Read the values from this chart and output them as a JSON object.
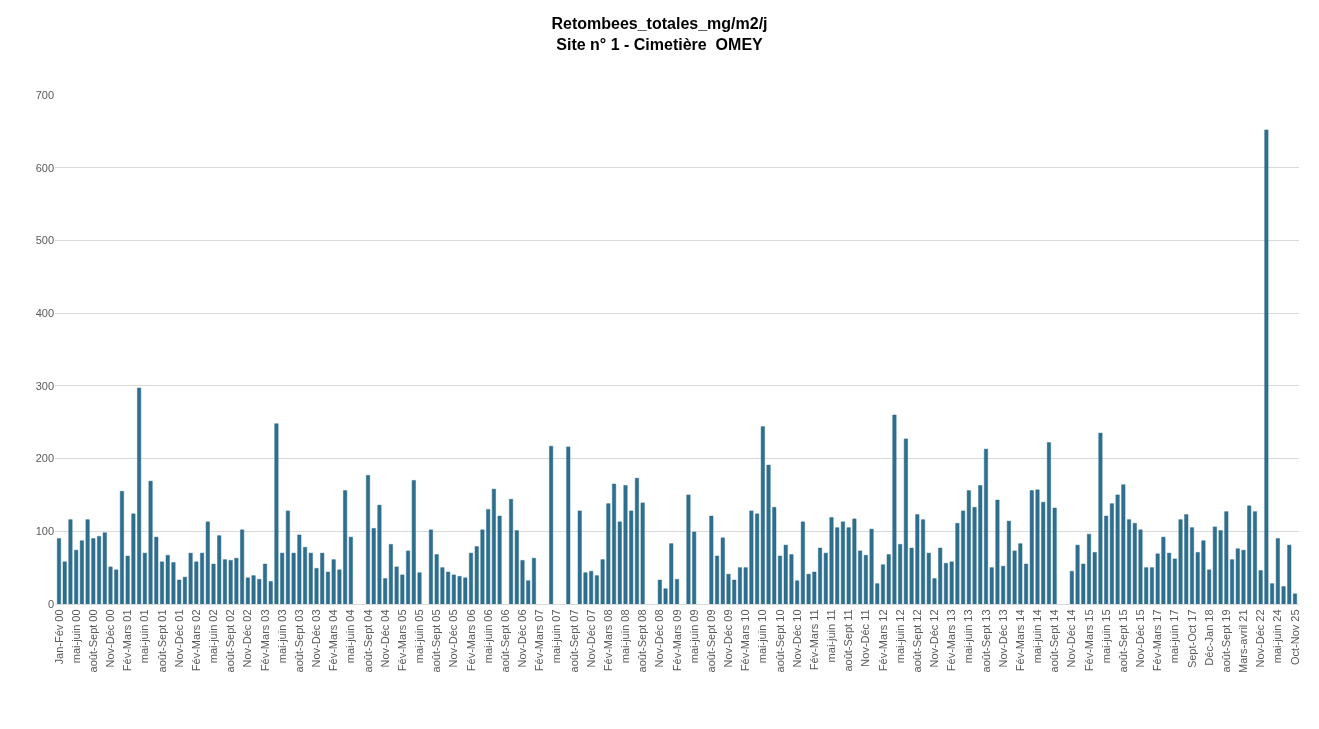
{
  "chart_data": {
    "type": "bar",
    "title": "Retombees_totales_mg/m2/j",
    "subtitle": "Site n° 1 - Cimetière  OMEY",
    "categories": [
      "Jan-Fév 00",
      null,
      null,
      "mai-juin 00",
      null,
      null,
      "août-Sept 00",
      null,
      null,
      "Nov-Déc 00",
      null,
      null,
      "Fév-Mars 01",
      null,
      null,
      "mai-juin 01",
      null,
      null,
      "août-Sept 01",
      null,
      null,
      "Nov-Déc 01",
      null,
      null,
      "Fév-Mars 02",
      null,
      null,
      "mai-juin 02",
      null,
      null,
      "août-Sept 02",
      null,
      null,
      "Nov-Déc 02",
      null,
      null,
      "Fév-Mars 03",
      null,
      null,
      "mai-juin 03",
      null,
      null,
      "août-Sept 03",
      null,
      null,
      "Nov-Déc 03",
      null,
      null,
      "Fév-Mars 04",
      null,
      null,
      "mai-juin 04",
      null,
      null,
      "août-Sept 04",
      null,
      null,
      "Nov-Déc 04",
      null,
      null,
      "Fév-Mars 05",
      null,
      null,
      "mai-juin 05",
      null,
      null,
      "août-Sept 05",
      null,
      null,
      "Nov-Déc 05",
      null,
      null,
      "Fév-Mars 06",
      null,
      null,
      "mai-juin 06",
      null,
      null,
      "août-Sept 06",
      null,
      null,
      "Nov-Déc 06",
      null,
      null,
      "Fév-Mars 07",
      null,
      null,
      "mai-juin 07",
      null,
      null,
      "août-Sept 07",
      null,
      null,
      "Nov-Déc 07",
      null,
      null,
      "Fév-Mars 08",
      null,
      null,
      "mai-juin 08",
      null,
      null,
      "août-Sept 08",
      null,
      null,
      "Nov-Déc 08",
      null,
      null,
      "Fév-Mars 09",
      null,
      null,
      "mai-juin 09",
      null,
      null,
      "août-Sept 09",
      null,
      null,
      "Nov-Déc 09",
      null,
      null,
      "Fév-Mars 10",
      null,
      null,
      "mai-juin 10",
      null,
      null,
      "août-Sept 10",
      null,
      null,
      "Nov-Déc 10",
      null,
      null,
      "Fév-Mars 11",
      null,
      null,
      "mai-juin 11",
      null,
      null,
      "août-Sept 11",
      null,
      null,
      "Nov-Déc 11",
      null,
      null,
      "Fév-Mars 12",
      null,
      null,
      "mai-juin 12",
      null,
      null,
      "août-Sept 12",
      null,
      null,
      "Nov-Déc 12",
      null,
      null,
      "Fév-Mars 13",
      null,
      null,
      "mai-juin 13",
      null,
      null,
      "août-Sept 13",
      null,
      null,
      "Nov-Déc 13",
      null,
      null,
      "Fév-Mars 14",
      null,
      null,
      "mai-juin 14",
      null,
      null,
      "août-Sept 14",
      null,
      null,
      "Nov-Déc 14",
      null,
      null,
      "Fév-Mars 15",
      null,
      null,
      "mai-juin 15",
      null,
      null,
      "août-Sept 15",
      null,
      null,
      "Nov-Déc 15",
      null,
      null,
      "Fév-Mars 17",
      null,
      null,
      "mai-juin 17",
      null,
      null,
      "Sept-Oct 17",
      null,
      null,
      "Déc-Jan 18",
      null,
      null,
      "août-Sept 19",
      null,
      null,
      "Mars-avril 21",
      null,
      null,
      "Nov-Déc 22",
      null,
      null,
      "mai-juin 24",
      null,
      null,
      "Oct-Nov 25"
    ],
    "values": [
      90,
      58,
      116,
      74,
      87,
      116,
      90,
      93,
      98,
      51,
      47,
      155,
      66,
      124,
      297,
      70,
      169,
      92,
      58,
      67,
      57,
      33,
      37,
      70,
      58,
      70,
      113,
      55,
      94,
      61,
      60,
      63,
      102,
      36,
      39,
      34,
      55,
      31,
      248,
      70,
      128,
      70,
      95,
      78,
      70,
      49,
      70,
      44,
      61,
      47,
      156,
      92,
      null,
      null,
      177,
      104,
      136,
      35,
      82,
      51,
      40,
      73,
      170,
      43,
      null,
      102,
      68,
      50,
      44,
      40,
      38,
      36,
      70,
      79,
      102,
      130,
      158,
      121,
      null,
      144,
      101,
      60,
      32,
      63,
      null,
      null,
      217,
      null,
      null,
      216,
      null,
      128,
      43,
      45,
      39,
      61,
      138,
      165,
      113,
      163,
      128,
      173,
      139,
      null,
      null,
      33,
      21,
      83,
      34,
      null,
      150,
      99,
      null,
      null,
      121,
      66,
      91,
      41,
      33,
      50,
      50,
      128,
      124,
      244,
      191,
      133,
      66,
      81,
      68,
      32,
      113,
      41,
      44,
      77,
      70,
      119,
      105,
      113,
      105,
      117,
      73,
      67,
      103,
      28,
      54,
      68,
      260,
      82,
      227,
      77,
      123,
      116,
      70,
      35,
      77,
      56,
      58,
      111,
      128,
      156,
      133,
      163,
      213,
      50,
      143,
      52,
      114,
      73,
      83,
      55,
      156,
      157,
      140,
      222,
      132,
      null,
      null,
      45,
      81,
      55,
      96,
      71,
      235,
      121,
      138,
      150,
      164,
      116,
      111,
      102,
      50,
      50,
      69,
      92,
      70,
      62,
      116,
      123,
      105,
      71,
      87,
      47,
      106,
      101,
      127,
      61,
      76,
      74,
      135,
      127,
      46,
      652,
      28,
      90,
      24,
      81,
      14
    ],
    "color": "#2e6f8e",
    "ylim": [
      0,
      700
    ],
    "yticks": [
      0,
      100,
      200,
      300,
      400,
      500,
      600,
      700
    ],
    "grid": "y"
  }
}
